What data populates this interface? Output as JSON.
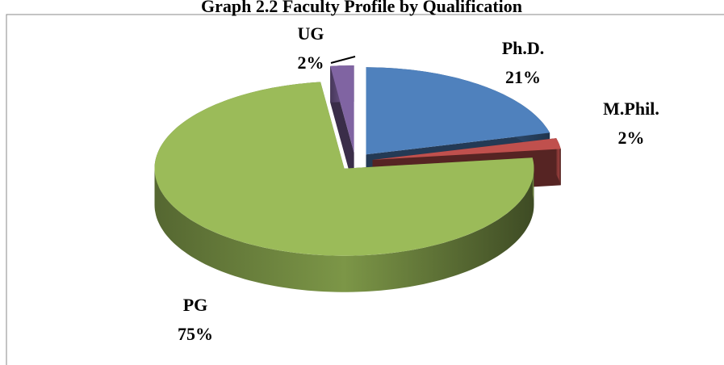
{
  "chart_data": {
    "type": "pie",
    "title": "Graph 2.2 Faculty Profile by Qualification",
    "categories": [
      "Ph.D.",
      "M.Phil.",
      "PG",
      "UG"
    ],
    "values": [
      21,
      2,
      75,
      2
    ],
    "value_labels": [
      "21%",
      "2%",
      "75%",
      "2%"
    ],
    "colors": [
      "#4f81bd",
      "#c0504d",
      "#9bbb59",
      "#8064a2"
    ],
    "exploded": true,
    "three_d": true
  }
}
